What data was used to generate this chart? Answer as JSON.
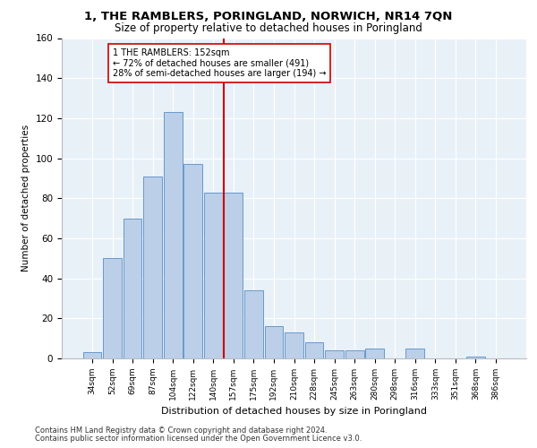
{
  "title": "1, THE RAMBLERS, PORINGLAND, NORWICH, NR14 7QN",
  "subtitle": "Size of property relative to detached houses in Poringland",
  "xlabel": "Distribution of detached houses by size in Poringland",
  "ylabel": "Number of detached properties",
  "bin_labels": [
    "34sqm",
    "52sqm",
    "69sqm",
    "87sqm",
    "104sqm",
    "122sqm",
    "140sqm",
    "157sqm",
    "175sqm",
    "192sqm",
    "210sqm",
    "228sqm",
    "245sqm",
    "263sqm",
    "280sqm",
    "298sqm",
    "316sqm",
    "333sqm",
    "351sqm",
    "368sqm",
    "386sqm"
  ],
  "bar_heights": [
    3,
    50,
    70,
    91,
    123,
    97,
    83,
    83,
    34,
    16,
    13,
    8,
    4,
    4,
    5,
    0,
    5,
    0,
    0,
    1,
    0
  ],
  "bar_color": "#BCCFE8",
  "bar_edge_color": "#6699CC",
  "vline_x_idx": 7,
  "vline_color": "#CC0000",
  "annotation_text": "1 THE RAMBLERS: 152sqm\n← 72% of detached houses are smaller (491)\n28% of semi-detached houses are larger (194) →",
  "annotation_box_color": "#FFFFFF",
  "annotation_box_edge": "#CC0000",
  "ylim": [
    0,
    160
  ],
  "yticks": [
    0,
    20,
    40,
    60,
    80,
    100,
    120,
    140,
    160
  ],
  "footer_line1": "Contains HM Land Registry data © Crown copyright and database right 2024.",
  "footer_line2": "Contains public sector information licensed under the Open Government Licence v3.0.",
  "bg_color": "#E8F0F8"
}
